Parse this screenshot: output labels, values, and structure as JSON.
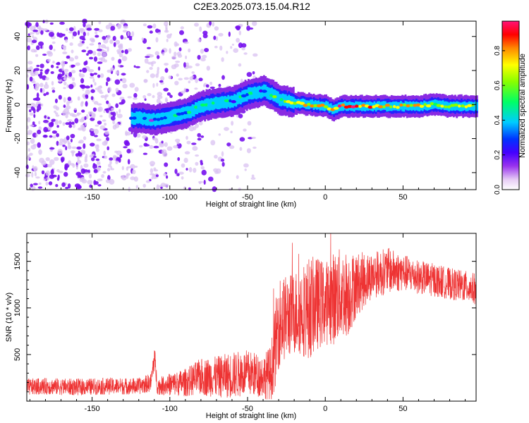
{
  "figure_title": "C2E3.2025.073.15.04.R12",
  "chart_data": [
    {
      "type": "heatmap",
      "title": "C2E3.2025.073.15.04.R12",
      "xlabel": "Height of straight line (km)",
      "ylabel": "Frequency (Hz)",
      "xlim": [
        -192,
        97
      ],
      "ylim": [
        -50,
        49
      ],
      "xticks": [
        -150,
        -100,
        -50,
        0,
        50
      ],
      "yticks": [
        -40,
        -20,
        0,
        20,
        40
      ],
      "xtick_labels": [
        "-150",
        "-100",
        "-50",
        "0",
        "50"
      ],
      "ytick_labels": [
        "-40",
        "-20",
        "0",
        "20",
        "40"
      ],
      "colorbar": {
        "label": "Normalized spectral amplitude",
        "range": [
          0,
          0.97
        ],
        "ticks": [
          0.0,
          0.2,
          0.4,
          0.6,
          0.8
        ],
        "tick_labels": [
          "0.0",
          "0.2",
          "0.4",
          "0.6",
          "0.8"
        ],
        "colormap": [
          "#ffffff",
          "#cc99ee",
          "#7700ee",
          "#0000ff",
          "#00ffff",
          "#00ff00",
          "#ffff00",
          "#ff8800",
          "#ff0000",
          "#ff0066"
        ]
      },
      "ridge": {
        "x": [
          -125,
          -120,
          -110,
          -100,
          -90,
          -80,
          -70,
          -60,
          -50,
          -40,
          -35,
          -30,
          -20,
          -10,
          0,
          5,
          10,
          20,
          30,
          40,
          50,
          60,
          70,
          80,
          90,
          97
        ],
        "freq": [
          -8,
          -8,
          -9,
          -7,
          -5,
          -1,
          1,
          2,
          6,
          8,
          6,
          3,
          1,
          0,
          -1,
          -3,
          -1,
          -1,
          -1,
          -1,
          -1,
          -1,
          0,
          -1,
          -1,
          -1
        ],
        "amplitude": [
          0.3,
          0.4,
          0.3,
          0.4,
          0.45,
          0.5,
          0.45,
          0.4,
          0.45,
          0.4,
          0.55,
          0.6,
          0.75,
          0.8,
          0.85,
          0.85,
          0.9,
          0.9,
          0.85,
          0.8,
          0.8,
          0.75,
          0.7,
          0.7,
          0.75,
          0.7
        ]
      },
      "background_noise_region_km": [
        -192,
        -45
      ],
      "grid": false
    },
    {
      "type": "line",
      "xlabel": "Height of straight line (km)",
      "ylabel": "SNR (10 * v/v)",
      "xlim": [
        -192,
        97
      ],
      "ylim": [
        0,
        1800
      ],
      "xticks": [
        -150,
        -100,
        -50,
        0,
        50
      ],
      "yticks": [
        500,
        1000,
        1500
      ],
      "xtick_labels": [
        "-150",
        "-100",
        "-50",
        "0",
        "50"
      ],
      "ytick_labels": [
        "500",
        "1000",
        "1500"
      ],
      "series_color": "#ee3333",
      "envelope": {
        "x": [
          -192,
          -180,
          -160,
          -140,
          -120,
          -112,
          -110,
          -108,
          -100,
          -90,
          -80,
          -70,
          -60,
          -50,
          -40,
          -35,
          -32,
          -30,
          -25,
          -20,
          -15,
          -10,
          -5,
          0,
          5,
          10,
          15,
          20,
          30,
          40,
          50,
          60,
          70,
          80,
          90,
          97
        ],
        "mean": [
          150,
          160,
          150,
          160,
          160,
          200,
          480,
          160,
          180,
          200,
          260,
          260,
          280,
          300,
          270,
          300,
          600,
          850,
          900,
          950,
          980,
          1000,
          1050,
          1050,
          1100,
          1150,
          1150,
          1250,
          1350,
          1400,
          1380,
          1330,
          1300,
          1260,
          1230,
          1200
        ],
        "amplitude": [
          90,
          90,
          90,
          90,
          90,
          100,
          150,
          90,
          120,
          150,
          200,
          220,
          250,
          250,
          230,
          300,
          450,
          500,
          450,
          450,
          500,
          550,
          500,
          450,
          500,
          500,
          450,
          350,
          250,
          250,
          200,
          180,
          180,
          170,
          170,
          170
        ]
      },
      "grid": false
    }
  ]
}
